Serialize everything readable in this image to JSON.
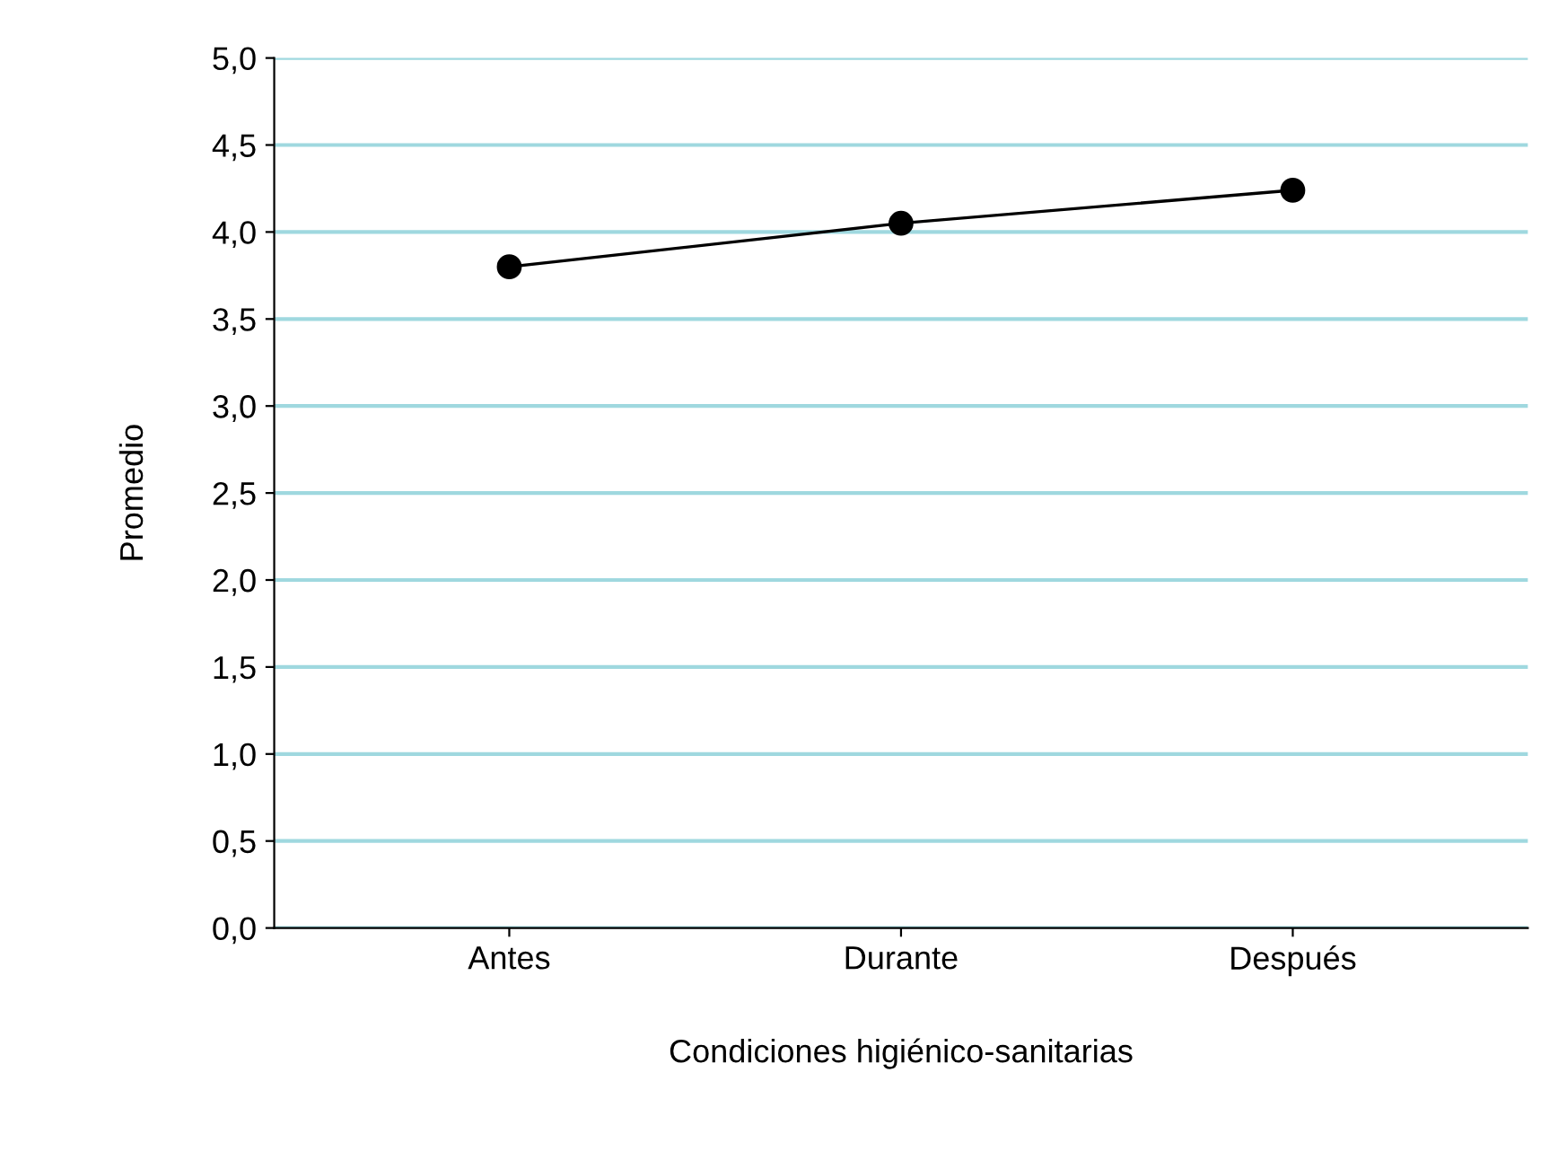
{
  "chart_data": {
    "type": "line",
    "xlabel": "Condiciones higiénico-sanitarias",
    "ylabel": "Promedio",
    "categories": [
      "Antes",
      "Durante",
      "Después"
    ],
    "series": [
      {
        "color": "#000000",
        "values": [
          3.8,
          4.05,
          4.24
        ]
      }
    ],
    "ylim": [
      0,
      5
    ],
    "yticks": [
      {
        "value": 0,
        "label": "0,0"
      },
      {
        "value": 0.5,
        "label": "0,5"
      },
      {
        "value": 1,
        "label": "1,0"
      },
      {
        "value": 1.5,
        "label": "1,5"
      },
      {
        "value": 2,
        "label": "2,0"
      },
      {
        "value": 2.5,
        "label": "2,5"
      },
      {
        "value": 3,
        "label": "3,0"
      },
      {
        "value": 3.5,
        "label": "3,5"
      },
      {
        "value": 4,
        "label": "4,0"
      },
      {
        "value": 4.5,
        "label": "4,5"
      },
      {
        "value": 5,
        "label": "5,0"
      }
    ],
    "grid": "y",
    "marker": "circle",
    "line_style": "solid"
  }
}
